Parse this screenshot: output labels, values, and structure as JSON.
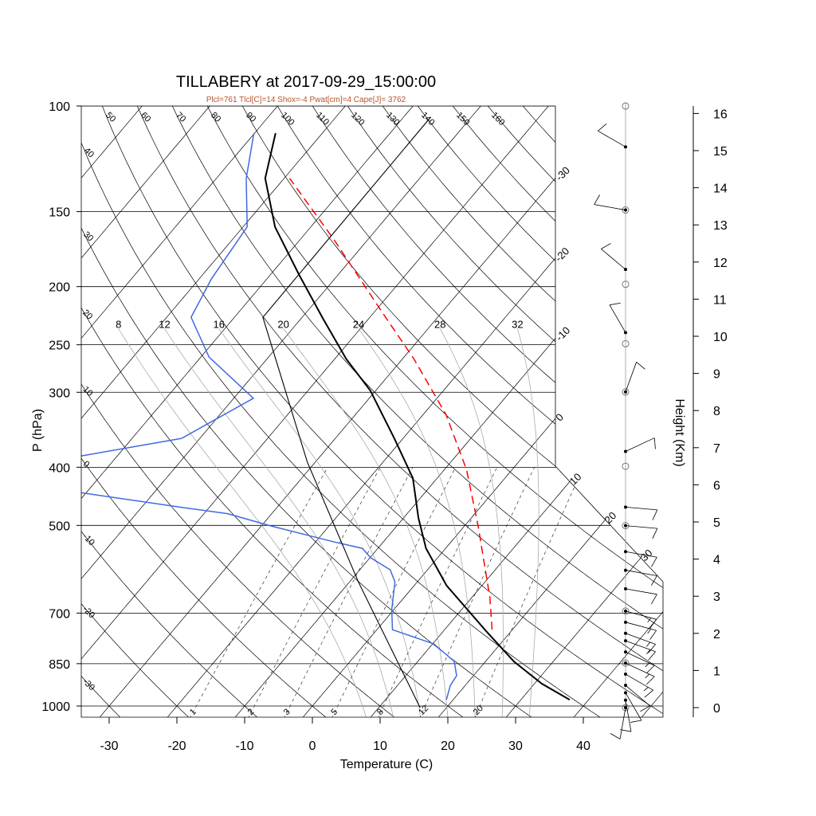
{
  "chart_data": {
    "type": "skew-t",
    "title": "TILLABERY at 2017-09-29_15:00:00",
    "subtitle": "Plcl=761 Tlcl[C]=14 Shox=-4 Pwat[cm]=4 Cape[J]= 3762",
    "xlabel": "Temperature (C)",
    "ylabel": "P (hPa)",
    "y2label": "Height (Km)",
    "xlim": [
      -34,
      52
    ],
    "ylim": [
      1044,
      100
    ],
    "xticks": [
      -30,
      -20,
      -10,
      0,
      10,
      20,
      30,
      40
    ],
    "yticks": [
      100,
      150,
      200,
      250,
      300,
      400,
      500,
      700,
      850,
      1000
    ],
    "y2ticks": [
      0,
      1,
      2,
      3,
      4,
      5,
      6,
      7,
      8,
      9,
      10,
      11,
      12,
      13,
      14,
      15,
      16
    ],
    "isotherm_labels": [
      -30,
      -20,
      -10,
      0,
      10,
      20,
      30
    ],
    "dry_adiabat_labels": [
      -30,
      -20,
      -10,
      0,
      10,
      20,
      30,
      40,
      50,
      60,
      70,
      80,
      90,
      100,
      110,
      120,
      130,
      140,
      150,
      160
    ],
    "moist_adiabat_labels": [
      8,
      12,
      16,
      20,
      24,
      28,
      32
    ],
    "mixing_ratio_labels": [
      1,
      2,
      3,
      5,
      8,
      12,
      20
    ],
    "series": [
      {
        "name": "temperature",
        "color": "#000000",
        "dashed": false,
        "points": [
          [
            976,
            37.2
          ],
          [
            918,
            31.1
          ],
          [
            843,
            24.2
          ],
          [
            750,
            16.3
          ],
          [
            630,
            4.8
          ],
          [
            546,
            -2.9
          ],
          [
            486,
            -7.8
          ],
          [
            417,
            -13.6
          ],
          [
            358,
            -21.3
          ],
          [
            298,
            -30.8
          ],
          [
            264,
            -38.3
          ],
          [
            226,
            -46.8
          ],
          [
            191,
            -55.8
          ],
          [
            159,
            -65.3
          ],
          [
            132,
            -72.8
          ],
          [
            111,
            -76.9
          ]
        ]
      },
      {
        "name": "dewpoint",
        "color": "#4169e1",
        "dashed": false,
        "points": [
          [
            976,
            19.0
          ],
          [
            924,
            17.8
          ],
          [
            890,
            17.5
          ],
          [
            843,
            15.4
          ],
          [
            788,
            10.2
          ],
          [
            746,
            2.3
          ],
          [
            691,
            -0.3
          ],
          [
            621,
            -3.3
          ],
          [
            593,
            -5.5
          ],
          [
            566,
            -9.9
          ],
          [
            546,
            -12.3
          ],
          [
            533,
            -17.2
          ],
          [
            501,
            -28.6
          ],
          [
            478,
            -36.5
          ],
          [
            467,
            -43.8
          ],
          [
            441,
            -60.8
          ],
          [
            430,
            -72
          ],
          [
            392,
            -72
          ],
          [
            383,
            -65.3
          ],
          [
            358,
            -52.7
          ],
          [
            307,
            -47.1
          ],
          [
            262,
            -58.8
          ],
          [
            225,
            -66.4
          ],
          [
            194,
            -68.2
          ],
          [
            159,
            -69.4
          ],
          [
            132,
            -75.6
          ],
          [
            111,
            -80.1
          ]
        ]
      },
      {
        "name": "parcel",
        "color": "#ff0000",
        "dashed": true,
        "points": [
          [
            746,
            17.0
          ],
          [
            660,
            12.7
          ],
          [
            501,
            2.0
          ],
          [
            404,
            -6.7
          ],
          [
            327,
            -16.6
          ],
          [
            264,
            -28.3
          ],
          [
            220,
            -39.0
          ],
          [
            167,
            -55.0
          ],
          [
            132,
            -69.2
          ]
        ]
      },
      {
        "name": "reference",
        "color": "#000000",
        "dashed": false,
        "points": [
          [
            1006,
            16.1
          ],
          [
            621,
            -8.7
          ],
          [
            392,
            -31.2
          ],
          [
            225,
            -55.8
          ],
          [
            105,
            -56.0
          ]
        ]
      }
    ],
    "wind_barbs": [
      {
        "height_km": 15.1,
        "dir": 300,
        "speed_kt": 10
      },
      {
        "height_km": 13.4,
        "dir": 280,
        "speed_kt": 10
      },
      {
        "height_km": 11.8,
        "dir": 310,
        "speed_kt": 10
      },
      {
        "height_km": 10.1,
        "dir": 330,
        "speed_kt": 10
      },
      {
        "height_km": 8.5,
        "dir": 20,
        "speed_kt": 10
      },
      {
        "height_km": 6.9,
        "dir": 65,
        "speed_kt": 10
      },
      {
        "height_km": 5.4,
        "dir": 95,
        "speed_kt": 10
      },
      {
        "height_km": 4.9,
        "dir": 95,
        "speed_kt": 10
      },
      {
        "height_km": 4.2,
        "dir": 100,
        "speed_kt": 10
      },
      {
        "height_km": 3.7,
        "dir": 100,
        "speed_kt": 10
      },
      {
        "height_km": 3.2,
        "dir": 100,
        "speed_kt": 10
      },
      {
        "height_km": 2.6,
        "dir": 105,
        "speed_kt": 15
      },
      {
        "height_km": 2.3,
        "dir": 105,
        "speed_kt": 15
      },
      {
        "height_km": 2.0,
        "dir": 110,
        "speed_kt": 15
      },
      {
        "height_km": 1.8,
        "dir": 110,
        "speed_kt": 15
      },
      {
        "height_km": 1.5,
        "dir": 115,
        "speed_kt": 15
      },
      {
        "height_km": 1.2,
        "dir": 115,
        "speed_kt": 15
      },
      {
        "height_km": 0.9,
        "dir": 120,
        "speed_kt": 15
      },
      {
        "height_km": 0.6,
        "dir": 130,
        "speed_kt": 10
      },
      {
        "height_km": 0.4,
        "dir": 150,
        "speed_kt": 10
      },
      {
        "height_km": 0.2,
        "dir": 170,
        "speed_kt": 10
      },
      {
        "height_km": 0.0,
        "dir": 190,
        "speed_kt": 10
      }
    ],
    "obs_circles_km": [
      16.2,
      13.4,
      11.4,
      9.8,
      8.5,
      6.5,
      4.9,
      2.6,
      1.2,
      0.0
    ]
  }
}
